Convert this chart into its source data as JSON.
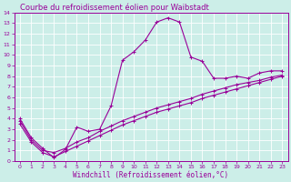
{
  "title": "Courbe du refroidissement éolien pour Waibstadt",
  "xlabel": "Windchill (Refroidissement éolien,°C)",
  "bg_color": "#cceee8",
  "line_color": "#990099",
  "grid_color": "#ffffff",
  "xlim": [
    -0.5,
    23.5
  ],
  "ylim": [
    0,
    14
  ],
  "xticks": [
    0,
    1,
    2,
    3,
    4,
    5,
    6,
    7,
    8,
    9,
    10,
    11,
    12,
    13,
    14,
    15,
    16,
    17,
    18,
    19,
    20,
    21,
    22,
    23
  ],
  "yticks": [
    0,
    1,
    2,
    3,
    4,
    5,
    6,
    7,
    8,
    9,
    10,
    11,
    12,
    13,
    14
  ],
  "curve1_x": [
    0,
    1,
    2,
    3,
    4,
    5,
    6,
    7,
    8,
    9,
    10,
    11,
    12,
    13,
    14,
    15,
    16,
    17,
    18,
    19,
    20,
    21,
    22,
    23
  ],
  "curve1_y": [
    4.0,
    2.2,
    1.2,
    0.3,
    1.1,
    3.2,
    2.8,
    3.0,
    5.2,
    9.5,
    10.3,
    11.4,
    13.1,
    13.5,
    13.1,
    9.8,
    9.4,
    7.8,
    7.8,
    8.0,
    7.8,
    8.3,
    8.5,
    8.5
  ],
  "curve2_x": [
    0,
    1,
    2,
    3,
    4,
    5,
    6,
    7,
    8,
    9,
    10,
    11,
    12,
    13,
    14,
    15,
    16,
    17,
    18,
    19,
    20,
    21,
    22,
    23
  ],
  "curve2_y": [
    3.8,
    2.0,
    1.0,
    0.8,
    1.2,
    1.8,
    2.2,
    2.8,
    3.3,
    3.8,
    4.2,
    4.6,
    5.0,
    5.3,
    5.6,
    5.9,
    6.3,
    6.6,
    6.9,
    7.2,
    7.4,
    7.6,
    7.9,
    8.1
  ],
  "curve3_x": [
    0,
    1,
    2,
    3,
    4,
    5,
    6,
    7,
    8,
    9,
    10,
    11,
    12,
    13,
    14,
    15,
    16,
    17,
    18,
    19,
    20,
    21,
    22,
    23
  ],
  "curve3_y": [
    3.5,
    1.8,
    0.8,
    0.4,
    0.9,
    1.4,
    1.9,
    2.4,
    2.9,
    3.4,
    3.8,
    4.2,
    4.6,
    4.9,
    5.2,
    5.5,
    5.9,
    6.2,
    6.5,
    6.8,
    7.1,
    7.4,
    7.7,
    8.0
  ],
  "title_fontsize": 6,
  "xlabel_fontsize": 5.5,
  "tick_fontsize": 4.5,
  "linewidth": 0.8,
  "markersize": 2.5
}
